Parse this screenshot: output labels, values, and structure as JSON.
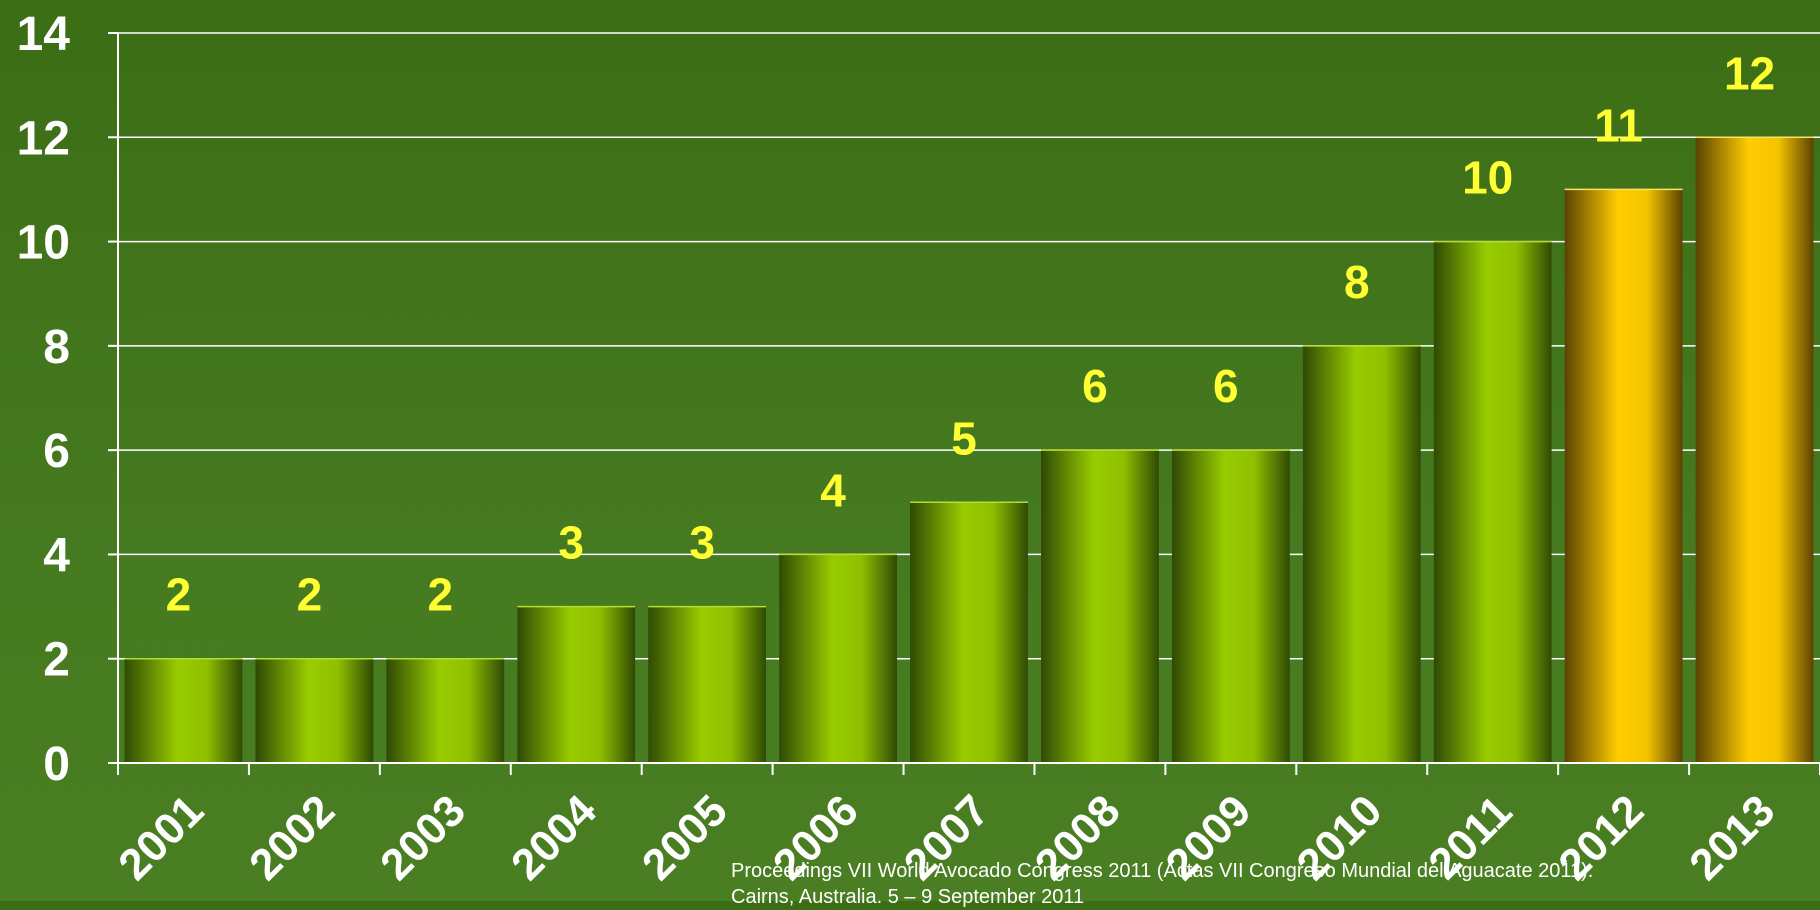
{
  "chart_data": {
    "type": "bar",
    "categories": [
      "2001",
      "2002",
      "2003",
      "2004",
      "2005",
      "2006",
      "2007",
      "2008",
      "2009",
      "2010",
      "2011",
      "2012",
      "2013"
    ],
    "values": [
      2,
      2,
      2,
      3,
      3,
      4,
      5,
      6,
      6,
      8,
      10,
      11,
      12
    ],
    "data_labels": [
      "2",
      "2",
      "2",
      "3",
      "3",
      "4",
      "5",
      "6",
      "6",
      "8",
      "10",
      "11",
      "12"
    ],
    "highlight_categories": [
      "2012",
      "2013"
    ],
    "ylim": [
      0,
      14
    ],
    "yticks": [
      0,
      2,
      4,
      6,
      8,
      10,
      12,
      14
    ],
    "grid": true,
    "colors": {
      "bar_light": "#99cc00",
      "bar_dark": "#2f4a05",
      "highlight_light": "#ffcc00",
      "highlight_dark": "#5a4303",
      "data_label": "#ffff33",
      "axis": "#ffffff"
    }
  },
  "footer": {
    "line1": "Proceedings VII World Avocado Congress 2011 (Actas VII Congreso Mundial del Aguacate 2011).",
    "line2": "Cairns, Australia. 5 – 9 September 2011"
  }
}
